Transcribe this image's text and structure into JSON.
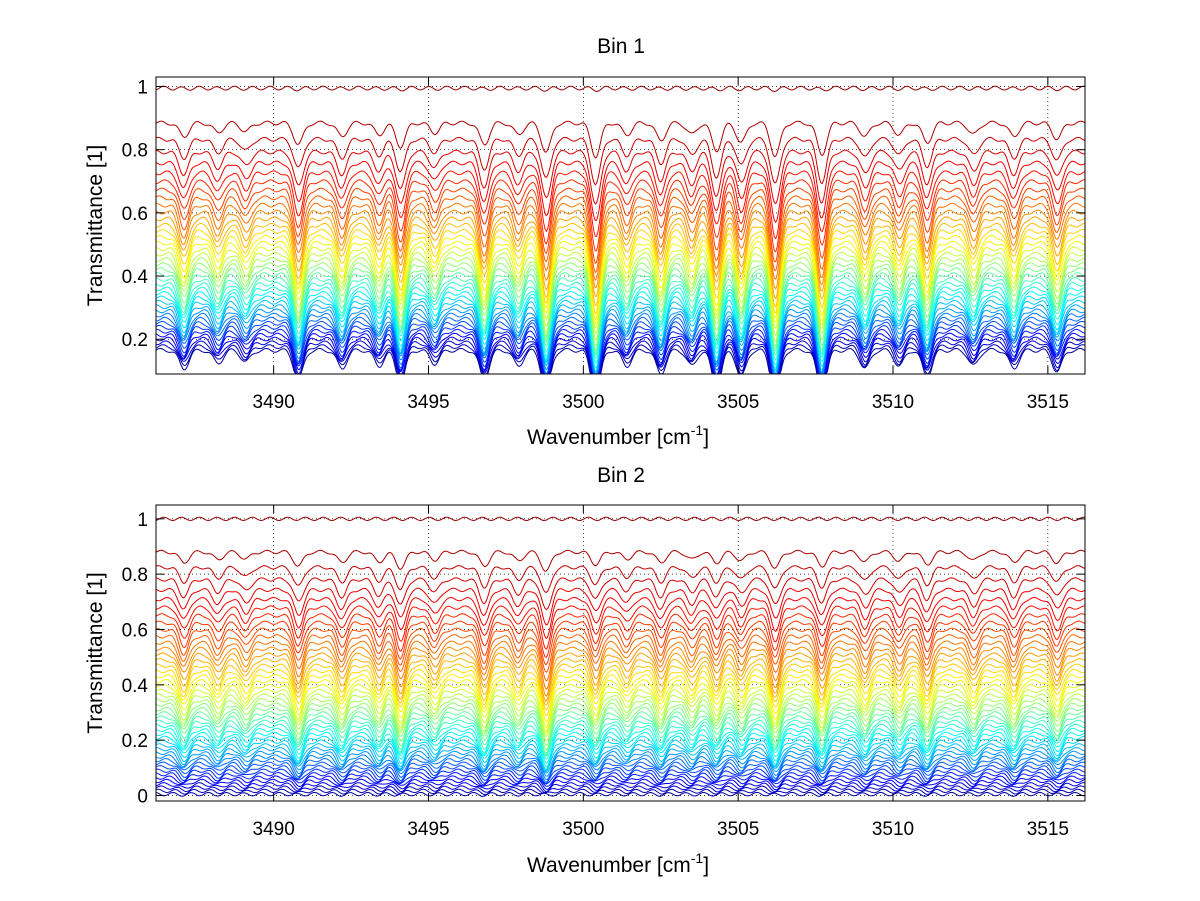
{
  "chart_data": [
    {
      "type": "line",
      "title": "Bin 1",
      "xlabel": "Wavenumber [cm",
      "xlabel_sup": "-1",
      "xlabel_close": "]",
      "ylabel": "Transmittance [1]",
      "xlim": [
        3486.2,
        3516.2
      ],
      "ylim": [
        0.09,
        1.03
      ],
      "xticks": [
        3490,
        3495,
        3500,
        3505,
        3510,
        3515
      ],
      "xtick_labels": [
        "3490",
        "3495",
        "3500",
        "3505",
        "3510",
        "3515"
      ],
      "yticks": [
        0.2,
        0.4,
        0.6,
        0.8,
        1
      ],
      "ytick_labels": [
        "0.2",
        "0.4",
        "0.6",
        "0.8",
        "1"
      ],
      "grid": true,
      "colormap": "jet",
      "n_curves": 40,
      "baseline_range": [
        0.165,
        0.995
      ],
      "absorption_lines": [
        {
          "x": 3487.1,
          "depth": 0.35
        },
        {
          "x": 3488.2,
          "depth": 0.25
        },
        {
          "x": 3489.1,
          "depth": 0.22
        },
        {
          "x": 3490.8,
          "depth": 0.55
        },
        {
          "x": 3492.2,
          "depth": 0.35
        },
        {
          "x": 3493.4,
          "depth": 0.3
        },
        {
          "x": 3494.1,
          "depth": 0.6
        },
        {
          "x": 3495.2,
          "depth": 0.25
        },
        {
          "x": 3496.8,
          "depth": 0.55
        },
        {
          "x": 3497.9,
          "depth": 0.3
        },
        {
          "x": 3498.8,
          "depth": 0.75
        },
        {
          "x": 3500.4,
          "depth": 0.85
        },
        {
          "x": 3501.4,
          "depth": 0.3
        },
        {
          "x": 3502.5,
          "depth": 0.45
        },
        {
          "x": 3503.5,
          "depth": 0.3
        },
        {
          "x": 3504.3,
          "depth": 0.7
        },
        {
          "x": 3505.1,
          "depth": 0.5
        },
        {
          "x": 3506.2,
          "depth": 0.85
        },
        {
          "x": 3507.7,
          "depth": 0.8
        },
        {
          "x": 3509.1,
          "depth": 0.35
        },
        {
          "x": 3510.2,
          "depth": 0.3
        },
        {
          "x": 3511.1,
          "depth": 0.5
        },
        {
          "x": 3512.6,
          "depth": 0.3
        },
        {
          "x": 3513.9,
          "depth": 0.35
        },
        {
          "x": 3515.3,
          "depth": 0.4
        }
      ]
    },
    {
      "type": "line",
      "title": "Bin 2",
      "xlabel": "Wavenumber [cm",
      "xlabel_sup": "-1",
      "xlabel_close": "]",
      "ylabel": "Transmittance [1]",
      "xlim": [
        3486.2,
        3516.2
      ],
      "ylim": [
        -0.02,
        1.05
      ],
      "xticks": [
        3490,
        3495,
        3500,
        3505,
        3510,
        3515
      ],
      "xtick_labels": [
        "3490",
        "3495",
        "3500",
        "3505",
        "3510",
        "3515"
      ],
      "yticks": [
        0,
        0.2,
        0.4,
        0.6,
        0.8,
        1
      ],
      "ytick_labels": [
        "0",
        "0.2",
        "0.4",
        "0.6",
        "0.8",
        "1"
      ],
      "grid": true,
      "colormap": "jet",
      "n_curves": 48,
      "baseline_range": [
        0.005,
        1.0
      ],
      "absorption_lines": [
        {
          "x": 3487.1,
          "depth": 0.3
        },
        {
          "x": 3488.2,
          "depth": 0.22
        },
        {
          "x": 3489.1,
          "depth": 0.2
        },
        {
          "x": 3490.8,
          "depth": 0.4
        },
        {
          "x": 3492.2,
          "depth": 0.3
        },
        {
          "x": 3493.4,
          "depth": 0.28
        },
        {
          "x": 3494.1,
          "depth": 0.45
        },
        {
          "x": 3495.2,
          "depth": 0.22
        },
        {
          "x": 3496.8,
          "depth": 0.4
        },
        {
          "x": 3497.9,
          "depth": 0.25
        },
        {
          "x": 3498.8,
          "depth": 0.55
        },
        {
          "x": 3500.4,
          "depth": 0.35
        },
        {
          "x": 3501.4,
          "depth": 0.2
        },
        {
          "x": 3502.5,
          "depth": 0.3
        },
        {
          "x": 3503.5,
          "depth": 0.22
        },
        {
          "x": 3504.3,
          "depth": 0.3
        },
        {
          "x": 3505.1,
          "depth": 0.25
        },
        {
          "x": 3506.2,
          "depth": 0.45
        },
        {
          "x": 3507.7,
          "depth": 0.4
        },
        {
          "x": 3509.1,
          "depth": 0.28
        },
        {
          "x": 3510.2,
          "depth": 0.25
        },
        {
          "x": 3511.1,
          "depth": 0.35
        },
        {
          "x": 3512.6,
          "depth": 0.25
        },
        {
          "x": 3513.9,
          "depth": 0.3
        },
        {
          "x": 3515.3,
          "depth": 0.3
        }
      ]
    }
  ]
}
